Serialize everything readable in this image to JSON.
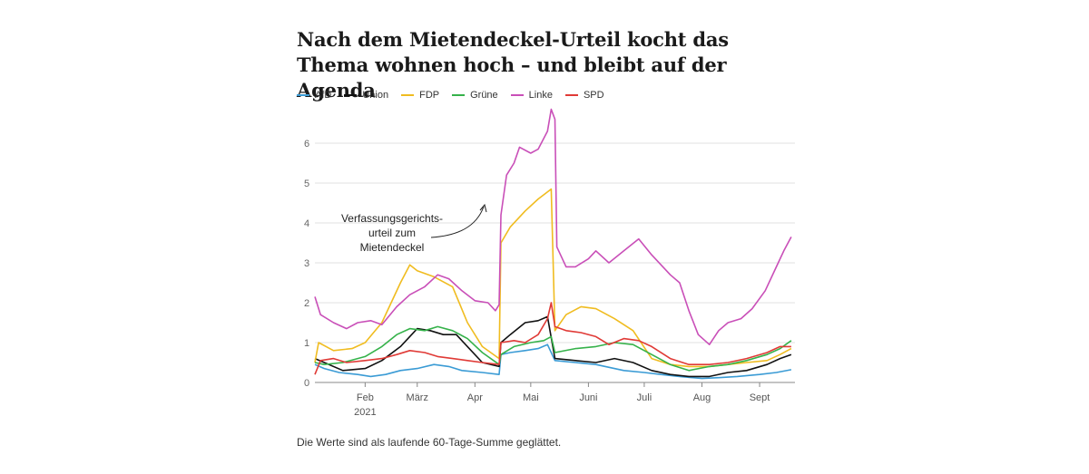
{
  "title": "Nach dem Mietendeckel-Urteil kocht das Thema wohnen hoch – und bleibt auf der Agenda",
  "caption": "Die Werte sind als laufende 60-Tage-Summe geglättet.",
  "annotation": [
    "Verfassungsgerichts-",
    "urteil zum",
    "Mietendeckel"
  ],
  "chart_data": {
    "type": "line",
    "x_ticks": [
      {
        "date": "2021-02-01",
        "label": "Feb",
        "sub": "2021"
      },
      {
        "date": "2021-03-01",
        "label": "März",
        "sub": ""
      },
      {
        "date": "2021-04-01",
        "label": "Apr",
        "sub": ""
      },
      {
        "date": "2021-05-01",
        "label": "Mai",
        "sub": ""
      },
      {
        "date": "2021-06-01",
        "label": "Juni",
        "sub": ""
      },
      {
        "date": "2021-07-01",
        "label": "Juli",
        "sub": ""
      },
      {
        "date": "2021-08-01",
        "label": "Aug",
        "sub": ""
      },
      {
        "date": "2021-09-01",
        "label": "Sept",
        "sub": ""
      }
    ],
    "xlim": [
      "2021-01-05",
      "2021-09-20"
    ],
    "ylim": [
      0,
      7
    ],
    "y_ticks": [
      0,
      1,
      2,
      3,
      4,
      5,
      6
    ],
    "grid": "horizontal",
    "legend_position": "top-left",
    "series": [
      {
        "name": "AfD",
        "color": "#3a9bd5",
        "points": [
          [
            "2021-01-05",
            0.45
          ],
          [
            "2021-01-10",
            0.35
          ],
          [
            "2021-01-18",
            0.25
          ],
          [
            "2021-01-28",
            0.2
          ],
          [
            "2021-02-04",
            0.15
          ],
          [
            "2021-02-12",
            0.2
          ],
          [
            "2021-02-20",
            0.3
          ],
          [
            "2021-03-01",
            0.35
          ],
          [
            "2021-03-10",
            0.45
          ],
          [
            "2021-03-18",
            0.4
          ],
          [
            "2021-03-25",
            0.3
          ],
          [
            "2021-04-05",
            0.25
          ],
          [
            "2021-04-14",
            0.2
          ],
          [
            "2021-04-15",
            0.7
          ],
          [
            "2021-04-20",
            0.75
          ],
          [
            "2021-04-28",
            0.8
          ],
          [
            "2021-05-05",
            0.85
          ],
          [
            "2021-05-10",
            0.95
          ],
          [
            "2021-05-14",
            0.55
          ],
          [
            "2021-05-25",
            0.5
          ],
          [
            "2021-06-05",
            0.45
          ],
          [
            "2021-06-20",
            0.3
          ],
          [
            "2021-07-01",
            0.25
          ],
          [
            "2021-07-10",
            0.2
          ],
          [
            "2021-07-20",
            0.15
          ],
          [
            "2021-08-01",
            0.1
          ],
          [
            "2021-08-10",
            0.12
          ],
          [
            "2021-08-20",
            0.15
          ],
          [
            "2021-09-01",
            0.2
          ],
          [
            "2021-09-10",
            0.25
          ],
          [
            "2021-09-18",
            0.32
          ]
        ]
      },
      {
        "name": "Union",
        "color": "#111111",
        "points": [
          [
            "2021-01-05",
            0.6
          ],
          [
            "2021-01-10",
            0.5
          ],
          [
            "2021-01-20",
            0.3
          ],
          [
            "2021-02-01",
            0.35
          ],
          [
            "2021-02-10",
            0.55
          ],
          [
            "2021-02-20",
            0.9
          ],
          [
            "2021-03-01",
            1.35
          ],
          [
            "2021-03-08",
            1.3
          ],
          [
            "2021-03-15",
            1.2
          ],
          [
            "2021-03-22",
            1.2
          ],
          [
            "2021-03-28",
            0.9
          ],
          [
            "2021-04-05",
            0.5
          ],
          [
            "2021-04-14",
            0.4
          ],
          [
            "2021-04-15",
            1.0
          ],
          [
            "2021-04-20",
            1.2
          ],
          [
            "2021-04-28",
            1.5
          ],
          [
            "2021-05-05",
            1.55
          ],
          [
            "2021-05-10",
            1.65
          ],
          [
            "2021-05-14",
            0.6
          ],
          [
            "2021-05-25",
            0.55
          ],
          [
            "2021-06-05",
            0.5
          ],
          [
            "2021-06-15",
            0.6
          ],
          [
            "2021-06-25",
            0.5
          ],
          [
            "2021-07-05",
            0.3
          ],
          [
            "2021-07-15",
            0.2
          ],
          [
            "2021-07-25",
            0.15
          ],
          [
            "2021-08-05",
            0.15
          ],
          [
            "2021-08-15",
            0.25
          ],
          [
            "2021-08-25",
            0.3
          ],
          [
            "2021-09-05",
            0.45
          ],
          [
            "2021-09-12",
            0.6
          ],
          [
            "2021-09-18",
            0.7
          ]
        ]
      },
      {
        "name": "FDP",
        "color": "#f0bc20",
        "points": [
          [
            "2021-01-05",
            0.5
          ],
          [
            "2021-01-07",
            1.0
          ],
          [
            "2021-01-15",
            0.8
          ],
          [
            "2021-01-25",
            0.85
          ],
          [
            "2021-02-01",
            1.0
          ],
          [
            "2021-02-10",
            1.5
          ],
          [
            "2021-02-20",
            2.5
          ],
          [
            "2021-02-25",
            2.95
          ],
          [
            "2021-03-01",
            2.8
          ],
          [
            "2021-03-10",
            2.65
          ],
          [
            "2021-03-20",
            2.4
          ],
          [
            "2021-03-28",
            1.5
          ],
          [
            "2021-04-05",
            0.9
          ],
          [
            "2021-04-14",
            0.6
          ],
          [
            "2021-04-15",
            3.5
          ],
          [
            "2021-04-20",
            3.9
          ],
          [
            "2021-04-28",
            4.3
          ],
          [
            "2021-05-05",
            4.6
          ],
          [
            "2021-05-12",
            4.85
          ],
          [
            "2021-05-14",
            1.3
          ],
          [
            "2021-05-20",
            1.7
          ],
          [
            "2021-05-28",
            1.9
          ],
          [
            "2021-06-05",
            1.85
          ],
          [
            "2021-06-15",
            1.6
          ],
          [
            "2021-06-25",
            1.3
          ],
          [
            "2021-07-05",
            0.6
          ],
          [
            "2021-07-15",
            0.45
          ],
          [
            "2021-07-25",
            0.4
          ],
          [
            "2021-08-05",
            0.4
          ],
          [
            "2021-08-15",
            0.45
          ],
          [
            "2021-08-25",
            0.5
          ],
          [
            "2021-09-05",
            0.55
          ],
          [
            "2021-09-12",
            0.7
          ],
          [
            "2021-09-18",
            0.85
          ]
        ]
      },
      {
        "name": "Grüne",
        "color": "#35b24a",
        "points": [
          [
            "2021-01-05",
            0.5
          ],
          [
            "2021-01-10",
            0.45
          ],
          [
            "2021-01-20",
            0.5
          ],
          [
            "2021-02-01",
            0.65
          ],
          [
            "2021-02-10",
            0.9
          ],
          [
            "2021-02-18",
            1.2
          ],
          [
            "2021-02-25",
            1.35
          ],
          [
            "2021-03-05",
            1.3
          ],
          [
            "2021-03-12",
            1.4
          ],
          [
            "2021-03-20",
            1.3
          ],
          [
            "2021-03-28",
            1.1
          ],
          [
            "2021-04-05",
            0.75
          ],
          [
            "2021-04-14",
            0.45
          ],
          [
            "2021-04-15",
            0.7
          ],
          [
            "2021-04-22",
            0.9
          ],
          [
            "2021-05-01",
            1.0
          ],
          [
            "2021-05-08",
            1.05
          ],
          [
            "2021-05-12",
            1.15
          ],
          [
            "2021-05-14",
            0.75
          ],
          [
            "2021-05-25",
            0.85
          ],
          [
            "2021-06-05",
            0.9
          ],
          [
            "2021-06-15",
            1.0
          ],
          [
            "2021-06-25",
            0.95
          ],
          [
            "2021-07-05",
            0.7
          ],
          [
            "2021-07-15",
            0.45
          ],
          [
            "2021-07-25",
            0.3
          ],
          [
            "2021-08-05",
            0.4
          ],
          [
            "2021-08-15",
            0.45
          ],
          [
            "2021-08-25",
            0.55
          ],
          [
            "2021-09-05",
            0.7
          ],
          [
            "2021-09-12",
            0.85
          ],
          [
            "2021-09-18",
            1.05
          ]
        ]
      },
      {
        "name": "Linke",
        "color": "#c94fb8",
        "points": [
          [
            "2021-01-05",
            2.15
          ],
          [
            "2021-01-08",
            1.7
          ],
          [
            "2021-01-15",
            1.5
          ],
          [
            "2021-01-22",
            1.35
          ],
          [
            "2021-01-28",
            1.5
          ],
          [
            "2021-02-04",
            1.55
          ],
          [
            "2021-02-10",
            1.45
          ],
          [
            "2021-02-18",
            1.9
          ],
          [
            "2021-02-25",
            2.2
          ],
          [
            "2021-03-05",
            2.4
          ],
          [
            "2021-03-12",
            2.7
          ],
          [
            "2021-03-18",
            2.6
          ],
          [
            "2021-03-25",
            2.3
          ],
          [
            "2021-04-01",
            2.05
          ],
          [
            "2021-04-08",
            2.0
          ],
          [
            "2021-04-12",
            1.8
          ],
          [
            "2021-04-14",
            1.95
          ],
          [
            "2021-04-15",
            4.2
          ],
          [
            "2021-04-18",
            5.2
          ],
          [
            "2021-04-22",
            5.5
          ],
          [
            "2021-04-25",
            5.9
          ],
          [
            "2021-05-01",
            5.75
          ],
          [
            "2021-05-05",
            5.85
          ],
          [
            "2021-05-10",
            6.3
          ],
          [
            "2021-05-12",
            6.85
          ],
          [
            "2021-05-14",
            6.6
          ],
          [
            "2021-05-15",
            3.4
          ],
          [
            "2021-05-20",
            2.9
          ],
          [
            "2021-05-25",
            2.9
          ],
          [
            "2021-06-01",
            3.1
          ],
          [
            "2021-06-05",
            3.3
          ],
          [
            "2021-06-12",
            3.0
          ],
          [
            "2021-06-20",
            3.3
          ],
          [
            "2021-06-28",
            3.6
          ],
          [
            "2021-07-05",
            3.2
          ],
          [
            "2021-07-15",
            2.7
          ],
          [
            "2021-07-20",
            2.5
          ],
          [
            "2021-07-25",
            1.8
          ],
          [
            "2021-07-30",
            1.2
          ],
          [
            "2021-08-05",
            0.95
          ],
          [
            "2021-08-10",
            1.3
          ],
          [
            "2021-08-15",
            1.5
          ],
          [
            "2021-08-22",
            1.6
          ],
          [
            "2021-08-28",
            1.85
          ],
          [
            "2021-09-04",
            2.3
          ],
          [
            "2021-09-10",
            2.9
          ],
          [
            "2021-09-14",
            3.3
          ],
          [
            "2021-09-18",
            3.65
          ]
        ]
      },
      {
        "name": "SPD",
        "color": "#e03a36",
        "points": [
          [
            "2021-01-05",
            0.2
          ],
          [
            "2021-01-08",
            0.55
          ],
          [
            "2021-01-15",
            0.6
          ],
          [
            "2021-01-22",
            0.5
          ],
          [
            "2021-02-01",
            0.55
          ],
          [
            "2021-02-10",
            0.6
          ],
          [
            "2021-02-18",
            0.7
          ],
          [
            "2021-02-25",
            0.8
          ],
          [
            "2021-03-05",
            0.75
          ],
          [
            "2021-03-12",
            0.65
          ],
          [
            "2021-03-20",
            0.6
          ],
          [
            "2021-03-28",
            0.55
          ],
          [
            "2021-04-05",
            0.5
          ],
          [
            "2021-04-14",
            0.45
          ],
          [
            "2021-04-15",
            1.0
          ],
          [
            "2021-04-22",
            1.05
          ],
          [
            "2021-04-28",
            1.0
          ],
          [
            "2021-05-05",
            1.2
          ],
          [
            "2021-05-10",
            1.6
          ],
          [
            "2021-05-12",
            2.0
          ],
          [
            "2021-05-14",
            1.4
          ],
          [
            "2021-05-20",
            1.3
          ],
          [
            "2021-05-28",
            1.25
          ],
          [
            "2021-06-05",
            1.15
          ],
          [
            "2021-06-12",
            0.95
          ],
          [
            "2021-06-20",
            1.1
          ],
          [
            "2021-06-28",
            1.05
          ],
          [
            "2021-07-05",
            0.9
          ],
          [
            "2021-07-15",
            0.6
          ],
          [
            "2021-07-25",
            0.45
          ],
          [
            "2021-08-05",
            0.45
          ],
          [
            "2021-08-15",
            0.5
          ],
          [
            "2021-08-25",
            0.6
          ],
          [
            "2021-09-05",
            0.75
          ],
          [
            "2021-09-12",
            0.9
          ],
          [
            "2021-09-18",
            0.9
          ]
        ]
      }
    ]
  }
}
